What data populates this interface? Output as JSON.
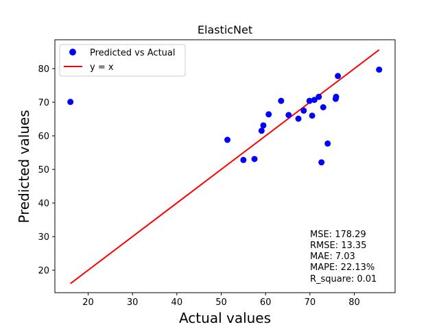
{
  "chart_data": {
    "type": "scatter",
    "title": "ElasticNet",
    "xlabel": "Actual values",
    "ylabel": "Predicted values",
    "xlim": [
      12.5,
      89.2
    ],
    "ylim": [
      13.3,
      88.6
    ],
    "xticks": [
      20,
      30,
      40,
      50,
      60,
      70,
      80
    ],
    "yticks": [
      20,
      30,
      40,
      50,
      60,
      70,
      80
    ],
    "grid": false,
    "legend_position": "top-left",
    "series": [
      {
        "name": "Predicted vs Actual",
        "kind": "scatter",
        "color": "#0000ff",
        "points": [
          {
            "x": 16.0,
            "y": 70.1
          },
          {
            "x": 51.4,
            "y": 58.8
          },
          {
            "x": 55.0,
            "y": 52.8
          },
          {
            "x": 57.5,
            "y": 53.1
          },
          {
            "x": 59.1,
            "y": 61.5
          },
          {
            "x": 59.5,
            "y": 63.1
          },
          {
            "x": 60.7,
            "y": 66.4
          },
          {
            "x": 63.5,
            "y": 70.4
          },
          {
            "x": 65.2,
            "y": 66.2
          },
          {
            "x": 67.4,
            "y": 65.1
          },
          {
            "x": 68.6,
            "y": 67.5
          },
          {
            "x": 69.9,
            "y": 70.4
          },
          {
            "x": 70.5,
            "y": 66.0
          },
          {
            "x": 71.0,
            "y": 70.7
          },
          {
            "x": 72.0,
            "y": 71.6
          },
          {
            "x": 73.0,
            "y": 68.5
          },
          {
            "x": 72.6,
            "y": 52.1
          },
          {
            "x": 74.0,
            "y": 57.7
          },
          {
            "x": 75.8,
            "y": 71.0
          },
          {
            "x": 75.9,
            "y": 71.6
          },
          {
            "x": 76.3,
            "y": 77.8
          },
          {
            "x": 85.6,
            "y": 79.7
          }
        ]
      },
      {
        "name": "y = x",
        "kind": "line",
        "color": "#ff0000",
        "points": [
          {
            "x": 16.0,
            "y": 16.0
          },
          {
            "x": 85.6,
            "y": 85.6
          }
        ]
      }
    ],
    "annotations": [
      "MSE: 178.29",
      "RMSE: 13.35",
      "MAE: 7.03",
      "MAPE: 22.13%",
      "R_square: 0.01"
    ]
  }
}
